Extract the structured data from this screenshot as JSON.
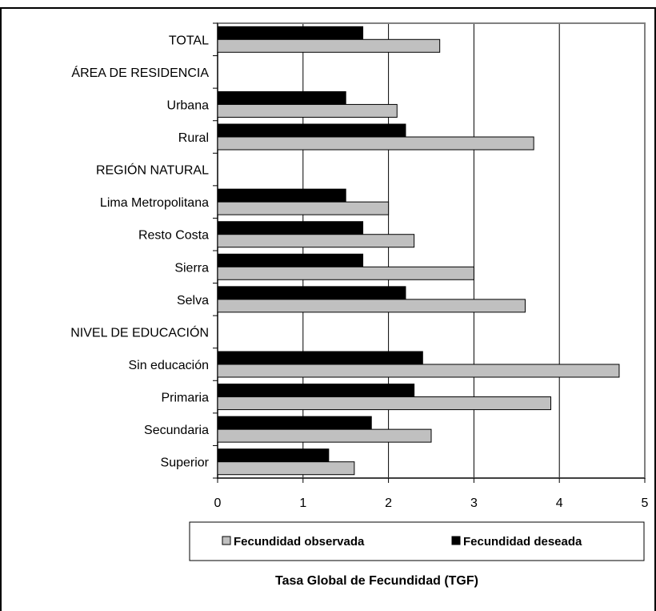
{
  "chart_data": {
    "type": "bar",
    "orientation": "horizontal",
    "categories": [
      "TOTAL",
      "ÁREA DE RESIDENCIA",
      "Urbana",
      "Rural",
      "REGIÓN NATURAL",
      "Lima Metropolitana",
      "Resto Costa",
      "Sierra",
      "Selva",
      "NIVEL DE EDUCACIÓN",
      "Sin educación",
      "Primaria",
      "Secundaria",
      "Superior"
    ],
    "series": [
      {
        "name": "Fecundidad deseada",
        "color": "#000000",
        "values": [
          1.7,
          null,
          1.5,
          2.2,
          null,
          1.5,
          1.7,
          1.7,
          2.2,
          null,
          2.4,
          2.3,
          1.8,
          1.3
        ]
      },
      {
        "name": "Fecundidad observada",
        "color": "#c0c0c0",
        "values": [
          2.6,
          null,
          2.1,
          3.7,
          null,
          2.0,
          2.3,
          3.0,
          3.6,
          null,
          4.7,
          3.9,
          2.5,
          1.6
        ]
      }
    ],
    "xlim": [
      0,
      5
    ],
    "xticks": [
      "0",
      "1",
      "2",
      "3",
      "4",
      "5"
    ],
    "xlabel": "Tasa Global de Fecundidad (TGF)",
    "grid": true,
    "legend": {
      "position": "bottom",
      "entries": [
        "Fecundidad observada",
        "Fecundidad deseada"
      ]
    }
  }
}
